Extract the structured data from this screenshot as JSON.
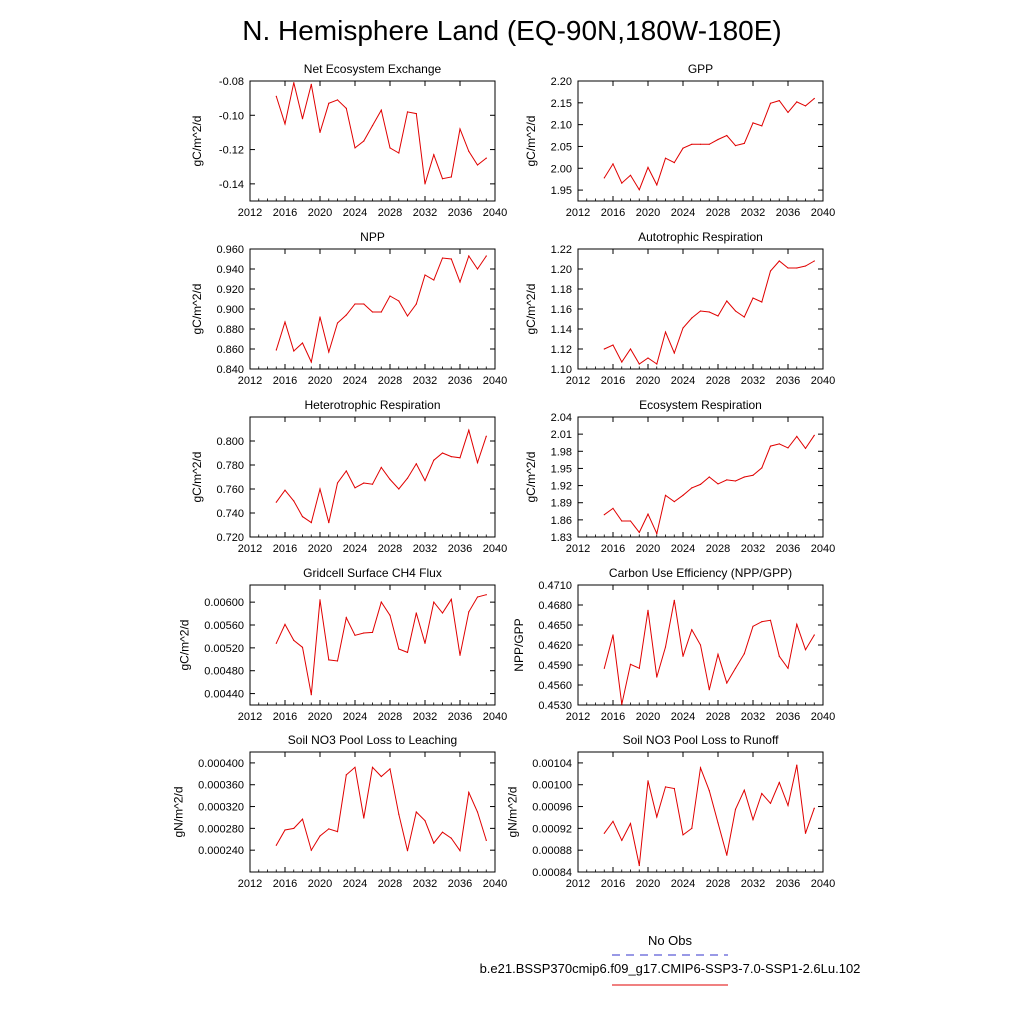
{
  "page": {
    "title": "N. Hemisphere Land (EQ-90N,180W-180E)"
  },
  "legend": {
    "obs_label": "No Obs",
    "obs_color": "#3333cc",
    "case_label": "b.e21.BSSP370cmip6.f09_g17.CMIP6-SSP3-7.0-SSP1-2.6Lu.102",
    "case_color": "#e00000"
  },
  "chart_data": [
    {
      "type": "line",
      "title": "Net Ecosystem Exchange",
      "xlabel": "",
      "ylabel": "gC/m^2/d",
      "xlim": [
        2012,
        2040
      ],
      "ylim": [
        -0.15,
        -0.08
      ],
      "xticks": [
        2012,
        2016,
        2020,
        2024,
        2028,
        2032,
        2036,
        2040
      ],
      "yticks": [
        "-0.08",
        "-0.10",
        "-0.12",
        "-0.14"
      ],
      "ytick_values": [
        -0.08,
        -0.1,
        -0.12,
        -0.14
      ],
      "grid": false,
      "series": [
        {
          "color": "#e00000",
          "x": [
            2015,
            2016,
            2017,
            2018,
            2019,
            2020,
            2021,
            2022,
            2023,
            2024,
            2025,
            2026,
            2027,
            2028,
            2029,
            2030,
            2031,
            2032,
            2033,
            2034,
            2035,
            2036,
            2037,
            2038,
            2039
          ],
          "y": [
            -0.089,
            -0.105,
            -0.081,
            -0.102,
            -0.082,
            -0.11,
            -0.093,
            -0.091,
            -0.096,
            -0.119,
            -0.115,
            -0.106,
            -0.097,
            -0.119,
            -0.122,
            -0.098,
            -0.099,
            -0.14,
            -0.123,
            -0.137,
            -0.136,
            -0.108,
            -0.121,
            -0.129,
            -0.125
          ]
        }
      ]
    },
    {
      "type": "line",
      "title": "GPP",
      "xlabel": "",
      "ylabel": "gC/m^2/d",
      "xlim": [
        2012,
        2040
      ],
      "ylim": [
        1.925,
        2.2
      ],
      "xticks": [
        2012,
        2016,
        2020,
        2024,
        2028,
        2032,
        2036,
        2040
      ],
      "yticks": [
        "2.20",
        "2.15",
        "2.10",
        "2.05",
        "2.00",
        "1.95"
      ],
      "ytick_values": [
        2.2,
        2.15,
        2.1,
        2.05,
        2.0,
        1.95
      ],
      "grid": false,
      "series": [
        {
          "color": "#e00000",
          "x": [
            2015,
            2016,
            2017,
            2018,
            2019,
            2020,
            2021,
            2022,
            2023,
            2024,
            2025,
            2026,
            2027,
            2028,
            2029,
            2030,
            2031,
            2032,
            2033,
            2034,
            2035,
            2036,
            2037,
            2038,
            2039
          ],
          "y": [
            1.978,
            2.01,
            1.966,
            1.984,
            1.951,
            2.002,
            1.962,
            2.023,
            2.013,
            2.046,
            2.055,
            2.055,
            2.055,
            2.066,
            2.075,
            2.052,
            2.057,
            2.104,
            2.097,
            2.149,
            2.155,
            2.128,
            2.152,
            2.143,
            2.16
          ]
        }
      ]
    },
    {
      "type": "line",
      "title": "NPP",
      "xlabel": "",
      "ylabel": "gC/m^2/d",
      "xlim": [
        2012,
        2040
      ],
      "ylim": [
        0.84,
        0.96
      ],
      "xticks": [
        2012,
        2016,
        2020,
        2024,
        2028,
        2032,
        2036,
        2040
      ],
      "yticks": [
        "0.960",
        "0.940",
        "0.920",
        "0.900",
        "0.880",
        "0.860",
        "0.840"
      ],
      "ytick_values": [
        0.96,
        0.94,
        0.92,
        0.9,
        0.88,
        0.86,
        0.84
      ],
      "grid": false,
      "series": [
        {
          "color": "#e00000",
          "x": [
            2015,
            2016,
            2017,
            2018,
            2019,
            2020,
            2021,
            2022,
            2023,
            2024,
            2025,
            2026,
            2027,
            2028,
            2029,
            2030,
            2031,
            2032,
            2033,
            2034,
            2035,
            2036,
            2037,
            2038,
            2039
          ],
          "y": [
            0.859,
            0.887,
            0.858,
            0.866,
            0.847,
            0.892,
            0.857,
            0.886,
            0.894,
            0.905,
            0.905,
            0.897,
            0.897,
            0.913,
            0.908,
            0.893,
            0.905,
            0.934,
            0.929,
            0.951,
            0.95,
            0.927,
            0.953,
            0.94,
            0.953
          ]
        }
      ]
    },
    {
      "type": "line",
      "title": "Autotrophic Respiration",
      "xlabel": "",
      "ylabel": "gC/m^2/d",
      "xlim": [
        2012,
        2040
      ],
      "ylim": [
        1.1,
        1.22
      ],
      "xticks": [
        2012,
        2016,
        2020,
        2024,
        2028,
        2032,
        2036,
        2040
      ],
      "yticks": [
        "1.22",
        "1.20",
        "1.18",
        "1.16",
        "1.14",
        "1.12",
        "1.10"
      ],
      "ytick_values": [
        1.22,
        1.2,
        1.18,
        1.16,
        1.14,
        1.12,
        1.1
      ],
      "grid": false,
      "series": [
        {
          "color": "#e00000",
          "x": [
            2015,
            2016,
            2017,
            2018,
            2019,
            2020,
            2021,
            2022,
            2023,
            2024,
            2025,
            2026,
            2027,
            2028,
            2029,
            2030,
            2031,
            2032,
            2033,
            2034,
            2035,
            2036,
            2037,
            2038,
            2039
          ],
          "y": [
            1.12,
            1.124,
            1.107,
            1.12,
            1.105,
            1.111,
            1.105,
            1.137,
            1.116,
            1.141,
            1.151,
            1.158,
            1.157,
            1.153,
            1.168,
            1.158,
            1.152,
            1.171,
            1.167,
            1.198,
            1.208,
            1.201,
            1.201,
            1.203,
            1.208
          ]
        }
      ]
    },
    {
      "type": "line",
      "title": "Heterotrophic Respiration",
      "xlabel": "",
      "ylabel": "gC/m^2/d",
      "xlim": [
        2012,
        2040
      ],
      "ylim": [
        0.72,
        0.82
      ],
      "xticks": [
        2012,
        2016,
        2020,
        2024,
        2028,
        2032,
        2036,
        2040
      ],
      "yticks": [
        "0.800",
        "0.780",
        "0.760",
        "0.740",
        "0.720"
      ],
      "ytick_values": [
        0.8,
        0.78,
        0.76,
        0.74,
        0.72
      ],
      "grid": false,
      "series": [
        {
          "color": "#e00000",
          "x": [
            2015,
            2016,
            2017,
            2018,
            2019,
            2020,
            2021,
            2022,
            2023,
            2024,
            2025,
            2026,
            2027,
            2028,
            2029,
            2030,
            2031,
            2032,
            2033,
            2034,
            2035,
            2036,
            2037,
            2038,
            2039
          ],
          "y": [
            0.749,
            0.759,
            0.75,
            0.737,
            0.732,
            0.76,
            0.732,
            0.765,
            0.775,
            0.761,
            0.765,
            0.764,
            0.778,
            0.768,
            0.76,
            0.769,
            0.781,
            0.767,
            0.784,
            0.79,
            0.787,
            0.786,
            0.809,
            0.782,
            0.804
          ]
        }
      ]
    },
    {
      "type": "line",
      "title": "Ecosystem Respiration",
      "xlabel": "",
      "ylabel": "gC/m^2/d",
      "xlim": [
        2012,
        2040
      ],
      "ylim": [
        1.83,
        2.04
      ],
      "xticks": [
        2012,
        2016,
        2020,
        2024,
        2028,
        2032,
        2036,
        2040
      ],
      "yticks": [
        "2.04",
        "2.01",
        "1.98",
        "1.95",
        "1.92",
        "1.89",
        "1.86",
        "1.83"
      ],
      "ytick_values": [
        2.04,
        2.01,
        1.98,
        1.95,
        1.92,
        1.89,
        1.86,
        1.83
      ],
      "grid": false,
      "series": [
        {
          "color": "#e00000",
          "x": [
            2015,
            2016,
            2017,
            2018,
            2019,
            2020,
            2021,
            2022,
            2023,
            2024,
            2025,
            2026,
            2027,
            2028,
            2029,
            2030,
            2031,
            2032,
            2033,
            2034,
            2035,
            2036,
            2037,
            2038,
            2039
          ],
          "y": [
            1.869,
            1.88,
            1.858,
            1.858,
            1.838,
            1.87,
            1.836,
            1.903,
            1.892,
            1.903,
            1.916,
            1.922,
            1.935,
            1.923,
            1.93,
            1.928,
            1.935,
            1.938,
            1.951,
            1.989,
            1.993,
            1.986,
            2.006,
            1.985,
            2.008
          ]
        }
      ]
    },
    {
      "type": "line",
      "title": "Gridcell Surface CH4 Flux",
      "xlabel": "",
      "ylabel": "gC/m^2/d",
      "xlim": [
        2012,
        2040
      ],
      "ylim": [
        0.0042,
        0.0063
      ],
      "xticks": [
        2012,
        2016,
        2020,
        2024,
        2028,
        2032,
        2036,
        2040
      ],
      "yticks": [
        "0.00600",
        "0.00560",
        "0.00520",
        "0.00480",
        "0.00440"
      ],
      "ytick_values": [
        0.006,
        0.0056,
        0.0052,
        0.0048,
        0.0044
      ],
      "grid": false,
      "series": [
        {
          "color": "#e00000",
          "x": [
            2015,
            2016,
            2017,
            2018,
            2019,
            2020,
            2021,
            2022,
            2023,
            2024,
            2025,
            2026,
            2027,
            2028,
            2029,
            2030,
            2031,
            2032,
            2033,
            2034,
            2035,
            2036,
            2037,
            2038,
            2039
          ],
          "y": [
            0.00528,
            0.00561,
            0.00533,
            0.00521,
            0.00438,
            0.00604,
            0.00499,
            0.00497,
            0.00573,
            0.00542,
            0.00546,
            0.00547,
            0.006,
            0.00577,
            0.00518,
            0.00512,
            0.00581,
            0.00528,
            0.006,
            0.00581,
            0.00605,
            0.00507,
            0.00583,
            0.00609,
            0.00613
          ]
        }
      ]
    },
    {
      "type": "line",
      "title": "Carbon Use Efficiency (NPP/GPP)",
      "xlabel": "",
      "ylabel": "NPP/GPP",
      "xlim": [
        2012,
        2040
      ],
      "ylim": [
        0.453,
        0.471
      ],
      "xticks": [
        2012,
        2016,
        2020,
        2024,
        2028,
        2032,
        2036,
        2040
      ],
      "yticks": [
        "0.4710",
        "0.4680",
        "0.4650",
        "0.4620",
        "0.4590",
        "0.4560",
        "0.4530"
      ],
      "ytick_values": [
        0.471,
        0.468,
        0.465,
        0.462,
        0.459,
        0.456,
        0.453
      ],
      "grid": false,
      "series": [
        {
          "color": "#e00000",
          "x": [
            2015,
            2016,
            2017,
            2018,
            2019,
            2020,
            2021,
            2022,
            2023,
            2024,
            2025,
            2026,
            2027,
            2028,
            2029,
            2030,
            2031,
            2032,
            2033,
            2034,
            2035,
            2036,
            2037,
            2038,
            2039
          ],
          "y": [
            0.4585,
            0.4635,
            0.4531,
            0.4591,
            0.4585,
            0.4672,
            0.4572,
            0.4617,
            0.4687,
            0.4603,
            0.4643,
            0.462,
            0.4553,
            0.4606,
            0.4563,
            0.4585,
            0.4607,
            0.4648,
            0.4655,
            0.4657,
            0.4603,
            0.4585,
            0.4651,
            0.4613,
            0.4635
          ]
        }
      ]
    },
    {
      "type": "line",
      "title": "Soil NO3 Pool Loss to Leaching",
      "xlabel": "",
      "ylabel": "gN/m^2/d",
      "xlim": [
        2012,
        2040
      ],
      "ylim": [
        0.0002,
        0.00042
      ],
      "xticks": [
        2012,
        2016,
        2020,
        2024,
        2028,
        2032,
        2036,
        2040
      ],
      "yticks": [
        "0.000400",
        "0.000360",
        "0.000320",
        "0.000280",
        "0.000240"
      ],
      "ytick_values": [
        0.0004,
        0.00036,
        0.00032,
        0.00028,
        0.00024
      ],
      "grid": false,
      "series": [
        {
          "color": "#e00000",
          "x": [
            2015,
            2016,
            2017,
            2018,
            2019,
            2020,
            2021,
            2022,
            2023,
            2024,
            2025,
            2026,
            2027,
            2028,
            2029,
            2030,
            2031,
            2032,
            2033,
            2034,
            2035,
            2036,
            2037,
            2038,
            2039
          ],
          "y": [
            0.000249,
            0.000277,
            0.00028,
            0.000297,
            0.00024,
            0.000266,
            0.000279,
            0.000274,
            0.000378,
            0.000392,
            0.000299,
            0.000392,
            0.000375,
            0.000389,
            0.000306,
            0.000239,
            0.00031,
            0.000294,
            0.000253,
            0.000273,
            0.000262,
            0.000239,
            0.000346,
            0.00031,
            0.000258
          ]
        }
      ]
    },
    {
      "type": "line",
      "title": "Soil NO3 Pool Loss to Runoff",
      "xlabel": "",
      "ylabel": "gN/m^2/d",
      "xlim": [
        2012,
        2040
      ],
      "ylim": [
        0.00084,
        0.00106
      ],
      "xticks": [
        2012,
        2016,
        2020,
        2024,
        2028,
        2032,
        2036,
        2040
      ],
      "yticks": [
        "0.00104",
        "0.00100",
        "0.00096",
        "0.00092",
        "0.00088",
        "0.00084"
      ],
      "ytick_values": [
        0.00104,
        0.001,
        0.00096,
        0.00092,
        0.00088,
        0.00084
      ],
      "grid": false,
      "series": [
        {
          "color": "#e00000",
          "x": [
            2015,
            2016,
            2017,
            2018,
            2019,
            2020,
            2021,
            2022,
            2023,
            2024,
            2025,
            2026,
            2027,
            2028,
            2029,
            2030,
            2031,
            2032,
            2033,
            2034,
            2035,
            2036,
            2037,
            2038,
            2039
          ],
          "y": [
            0.000911,
            0.000933,
            0.000898,
            0.000929,
            0.000852,
            0.001007,
            0.000941,
            0.000996,
            0.000993,
            0.000908,
            0.00092,
            0.001031,
            0.000989,
            0.00093,
            0.000871,
            0.000955,
            0.00099,
            0.000936,
            0.000984,
            0.000966,
            0.001004,
            0.000962,
            0.001036,
            0.000911,
            0.000957
          ]
        }
      ]
    }
  ]
}
